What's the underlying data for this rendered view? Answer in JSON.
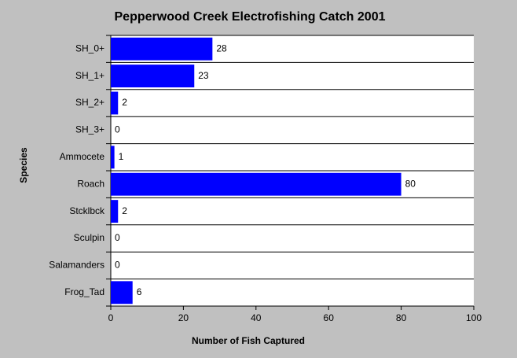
{
  "chart_data": {
    "type": "hbar",
    "title": "Pepperwood Creek Electrofishing Catch 2001",
    "x_label": "Number of Fish Captured",
    "y_label": "Species",
    "categories": [
      "SH_0+",
      "SH_1+",
      "SH_2+",
      "SH_3+",
      "Ammocete",
      "Roach",
      "Stcklbck",
      "Sculpin",
      "Salamanders",
      "Frog_Tad"
    ],
    "values": [
      28,
      23,
      2,
      0,
      1,
      80,
      2,
      0,
      0,
      6
    ],
    "color": "#0000ff",
    "xlim": [
      0,
      100
    ],
    "xticks": [
      0,
      20,
      40,
      60,
      80,
      100
    ],
    "grid": true
  }
}
